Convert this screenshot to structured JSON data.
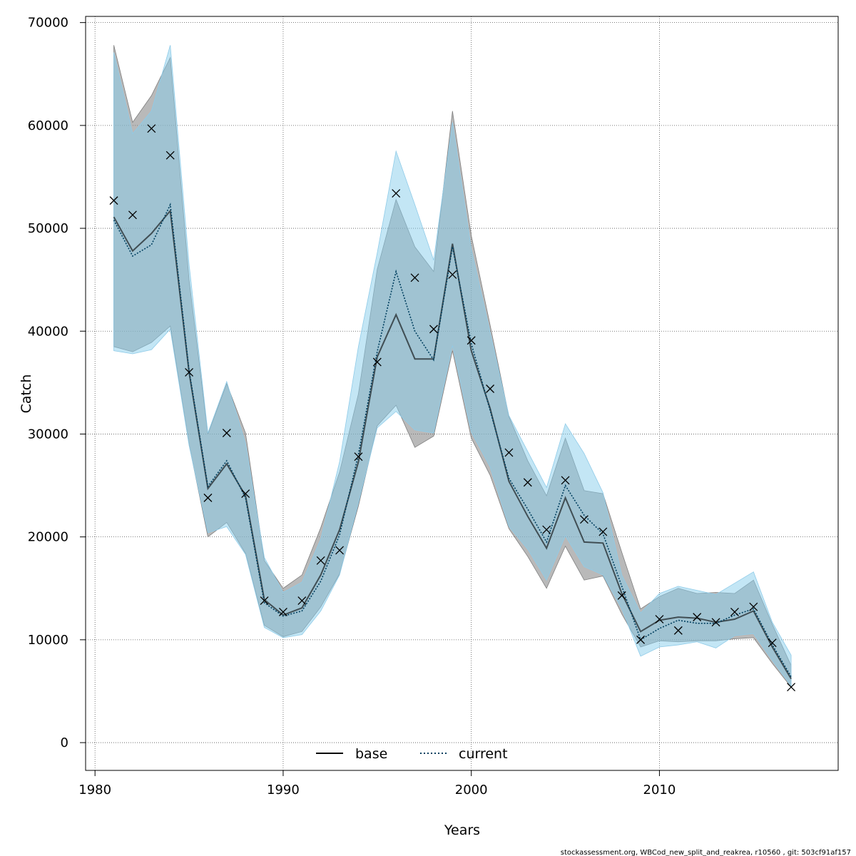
{
  "chart_data": {
    "type": "line",
    "xlabel": "Years",
    "ylabel": "Catch",
    "xlim": [
      1979.5,
      2019.5
    ],
    "ylim": [
      -2700,
      70600
    ],
    "xticks": [
      1980,
      1990,
      2000,
      2010
    ],
    "yticks": [
      0,
      10000,
      20000,
      30000,
      40000,
      50000,
      60000,
      70000
    ],
    "grid": true,
    "legend_position": "bottom-center",
    "x": [
      1981,
      1982,
      1983,
      1984,
      1985,
      1986,
      1987,
      1988,
      1989,
      1990,
      1991,
      1992,
      1993,
      1994,
      1995,
      1996,
      1997,
      1998,
      1999,
      2000,
      2001,
      2002,
      2003,
      2004,
      2005,
      2006,
      2007,
      2008,
      2009,
      2010,
      2011,
      2012,
      2013,
      2014,
      2015,
      2016,
      2017
    ],
    "series": [
      {
        "name": "base",
        "style": "solid",
        "color": "#000000",
        "band_color": "#808080",
        "values": [
          51100,
          47800,
          49500,
          51700,
          36000,
          24700,
          27100,
          24000,
          13900,
          12400,
          13100,
          16300,
          20700,
          27300,
          37500,
          41600,
          37300,
          37300,
          48500,
          38100,
          32500,
          25400,
          22000,
          18900,
          23800,
          19500,
          19400,
          14500,
          10800,
          11900,
          12200,
          12100,
          11700,
          12000,
          12800,
          9300,
          6200
        ],
        "lower": [
          38500,
          38000,
          38900,
          40500,
          29000,
          20000,
          21400,
          18400,
          11400,
          10300,
          10800,
          13200,
          16400,
          23000,
          30800,
          32800,
          28700,
          29800,
          38100,
          29600,
          26000,
          20800,
          18100,
          15000,
          19100,
          15800,
          16200,
          12500,
          9300,
          9900,
          9800,
          9900,
          9900,
          10100,
          10200,
          7700,
          5400
        ],
        "upper": [
          67800,
          60300,
          62900,
          66600,
          45000,
          30000,
          34900,
          30100,
          17700,
          15000,
          16300,
          20900,
          26300,
          33900,
          46000,
          52800,
          48200,
          45800,
          61400,
          49300,
          40600,
          31700,
          27400,
          24000,
          29600,
          24500,
          24200,
          18500,
          13000,
          14200,
          15000,
          14500,
          14600,
          14500,
          15800,
          11500,
          7500
        ]
      },
      {
        "name": "current",
        "style": "dotted",
        "color": "#003F5F",
        "band_color": "#87CEEB",
        "values": [
          50800,
          47300,
          48400,
          52300,
          36200,
          24900,
          27400,
          23800,
          13600,
          12300,
          12800,
          15700,
          20200,
          28000,
          38000,
          45800,
          40000,
          37200,
          48200,
          38800,
          32300,
          25700,
          22700,
          19500,
          25000,
          22100,
          20300,
          15200,
          10000,
          11100,
          11900,
          11600,
          11600,
          12400,
          13000,
          9500,
          6400
        ],
        "lower": [
          38100,
          37800,
          38200,
          40200,
          28900,
          20400,
          21000,
          18300,
          11200,
          10200,
          10500,
          12800,
          16300,
          23300,
          30600,
          32200,
          30400,
          30100,
          38600,
          30200,
          26800,
          21000,
          18800,
          15800,
          20100,
          17100,
          16300,
          13000,
          8400,
          9300,
          9500,
          9800,
          9200,
          10400,
          10600,
          8000,
          5500
        ],
        "upper": [
          67100,
          59200,
          61400,
          67800,
          46500,
          30100,
          35100,
          29100,
          18000,
          14600,
          15600,
          19800,
          27300,
          38500,
          47600,
          57500,
          52300,
          46900,
          60300,
          48000,
          39900,
          31800,
          28300,
          24800,
          31000,
          28100,
          24300,
          16300,
          12600,
          14500,
          15200,
          14800,
          14400,
          15500,
          16600,
          11700,
          8500
        ]
      }
    ],
    "observed": {
      "marker": "x",
      "values": [
        52700,
        51300,
        59700,
        57100,
        36000,
        23800,
        30100,
        24200,
        13800,
        12700,
        13800,
        17700,
        18700,
        27800,
        37000,
        53400,
        45200,
        40200,
        45500,
        39100,
        34400,
        28200,
        25300,
        20700,
        25500,
        21700,
        20500,
        14300,
        10000,
        12000,
        10900,
        12200,
        11700,
        12700,
        13200,
        9700,
        5400
      ]
    }
  },
  "legend": {
    "base_label": "base",
    "current_label": "current"
  },
  "footer": {
    "text": "stockassessment.org, WBCod_new_split_and_reakrea, r10560 , git: 503cf91af157"
  }
}
